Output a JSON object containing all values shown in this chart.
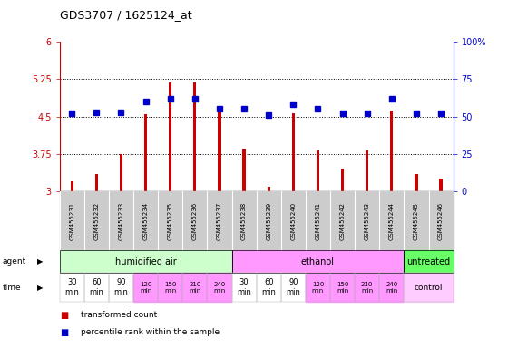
{
  "title": "GDS3707 / 1625124_at",
  "samples": [
    "GSM455231",
    "GSM455232",
    "GSM455233",
    "GSM455234",
    "GSM455235",
    "GSM455236",
    "GSM455237",
    "GSM455238",
    "GSM455239",
    "GSM455240",
    "GSM455241",
    "GSM455242",
    "GSM455243",
    "GSM455244",
    "GSM455245",
    "GSM455246"
  ],
  "transformed_count": [
    3.2,
    3.35,
    3.75,
    4.55,
    5.18,
    5.18,
    4.62,
    3.85,
    3.1,
    4.57,
    3.82,
    3.45,
    3.82,
    4.62,
    3.35,
    3.25
  ],
  "percentile_rank": [
    52,
    53,
    53,
    60,
    62,
    62,
    55,
    55,
    51,
    58,
    55,
    52,
    52,
    62,
    52,
    52
  ],
  "bar_color": "#cc0000",
  "dot_color": "#0000cc",
  "ylim_left": [
    3.0,
    6.0
  ],
  "ylim_right": [
    0,
    100
  ],
  "yticks_left": [
    3.0,
    3.75,
    4.5,
    5.25,
    6.0
  ],
  "yticks_right": [
    0,
    25,
    50,
    75,
    100
  ],
  "ytick_labels_left": [
    "3",
    "3.75",
    "4.5",
    "5.25",
    "6"
  ],
  "ytick_labels_right": [
    "0",
    "25",
    "50",
    "75",
    "100%"
  ],
  "hlines": [
    3.75,
    4.5,
    5.25
  ],
  "agent_groups": [
    {
      "label": "humidified air",
      "start": 0,
      "end": 7,
      "color": "#ccffcc"
    },
    {
      "label": "ethanol",
      "start": 7,
      "end": 14,
      "color": "#ff99ff"
    },
    {
      "label": "untreated",
      "start": 14,
      "end": 16,
      "color": "#66ff66"
    }
  ],
  "time_labels_14": [
    "30\nmin",
    "60\nmin",
    "90\nmin",
    "120\nmin",
    "150\nmin",
    "210\nmin",
    "240\nmin",
    "30\nmin",
    "60\nmin",
    "90\nmin",
    "120\nmin",
    "150\nmin",
    "210\nmin",
    "240\nmin"
  ],
  "time_colors": [
    "#ffffff",
    "#ffffff",
    "#ffffff",
    "#ff99ff",
    "#ff99ff",
    "#ff99ff",
    "#ff99ff",
    "#ffffff",
    "#ffffff",
    "#ffffff",
    "#ff99ff",
    "#ff99ff",
    "#ff99ff",
    "#ff99ff"
  ],
  "time_label_control": "control",
  "bg_color": "#ffffff",
  "plot_bg_color": "#ffffff",
  "gray_sample_bg": "#cccccc",
  "left_axis_color": "#cc0000",
  "right_axis_color": "#0000cc"
}
